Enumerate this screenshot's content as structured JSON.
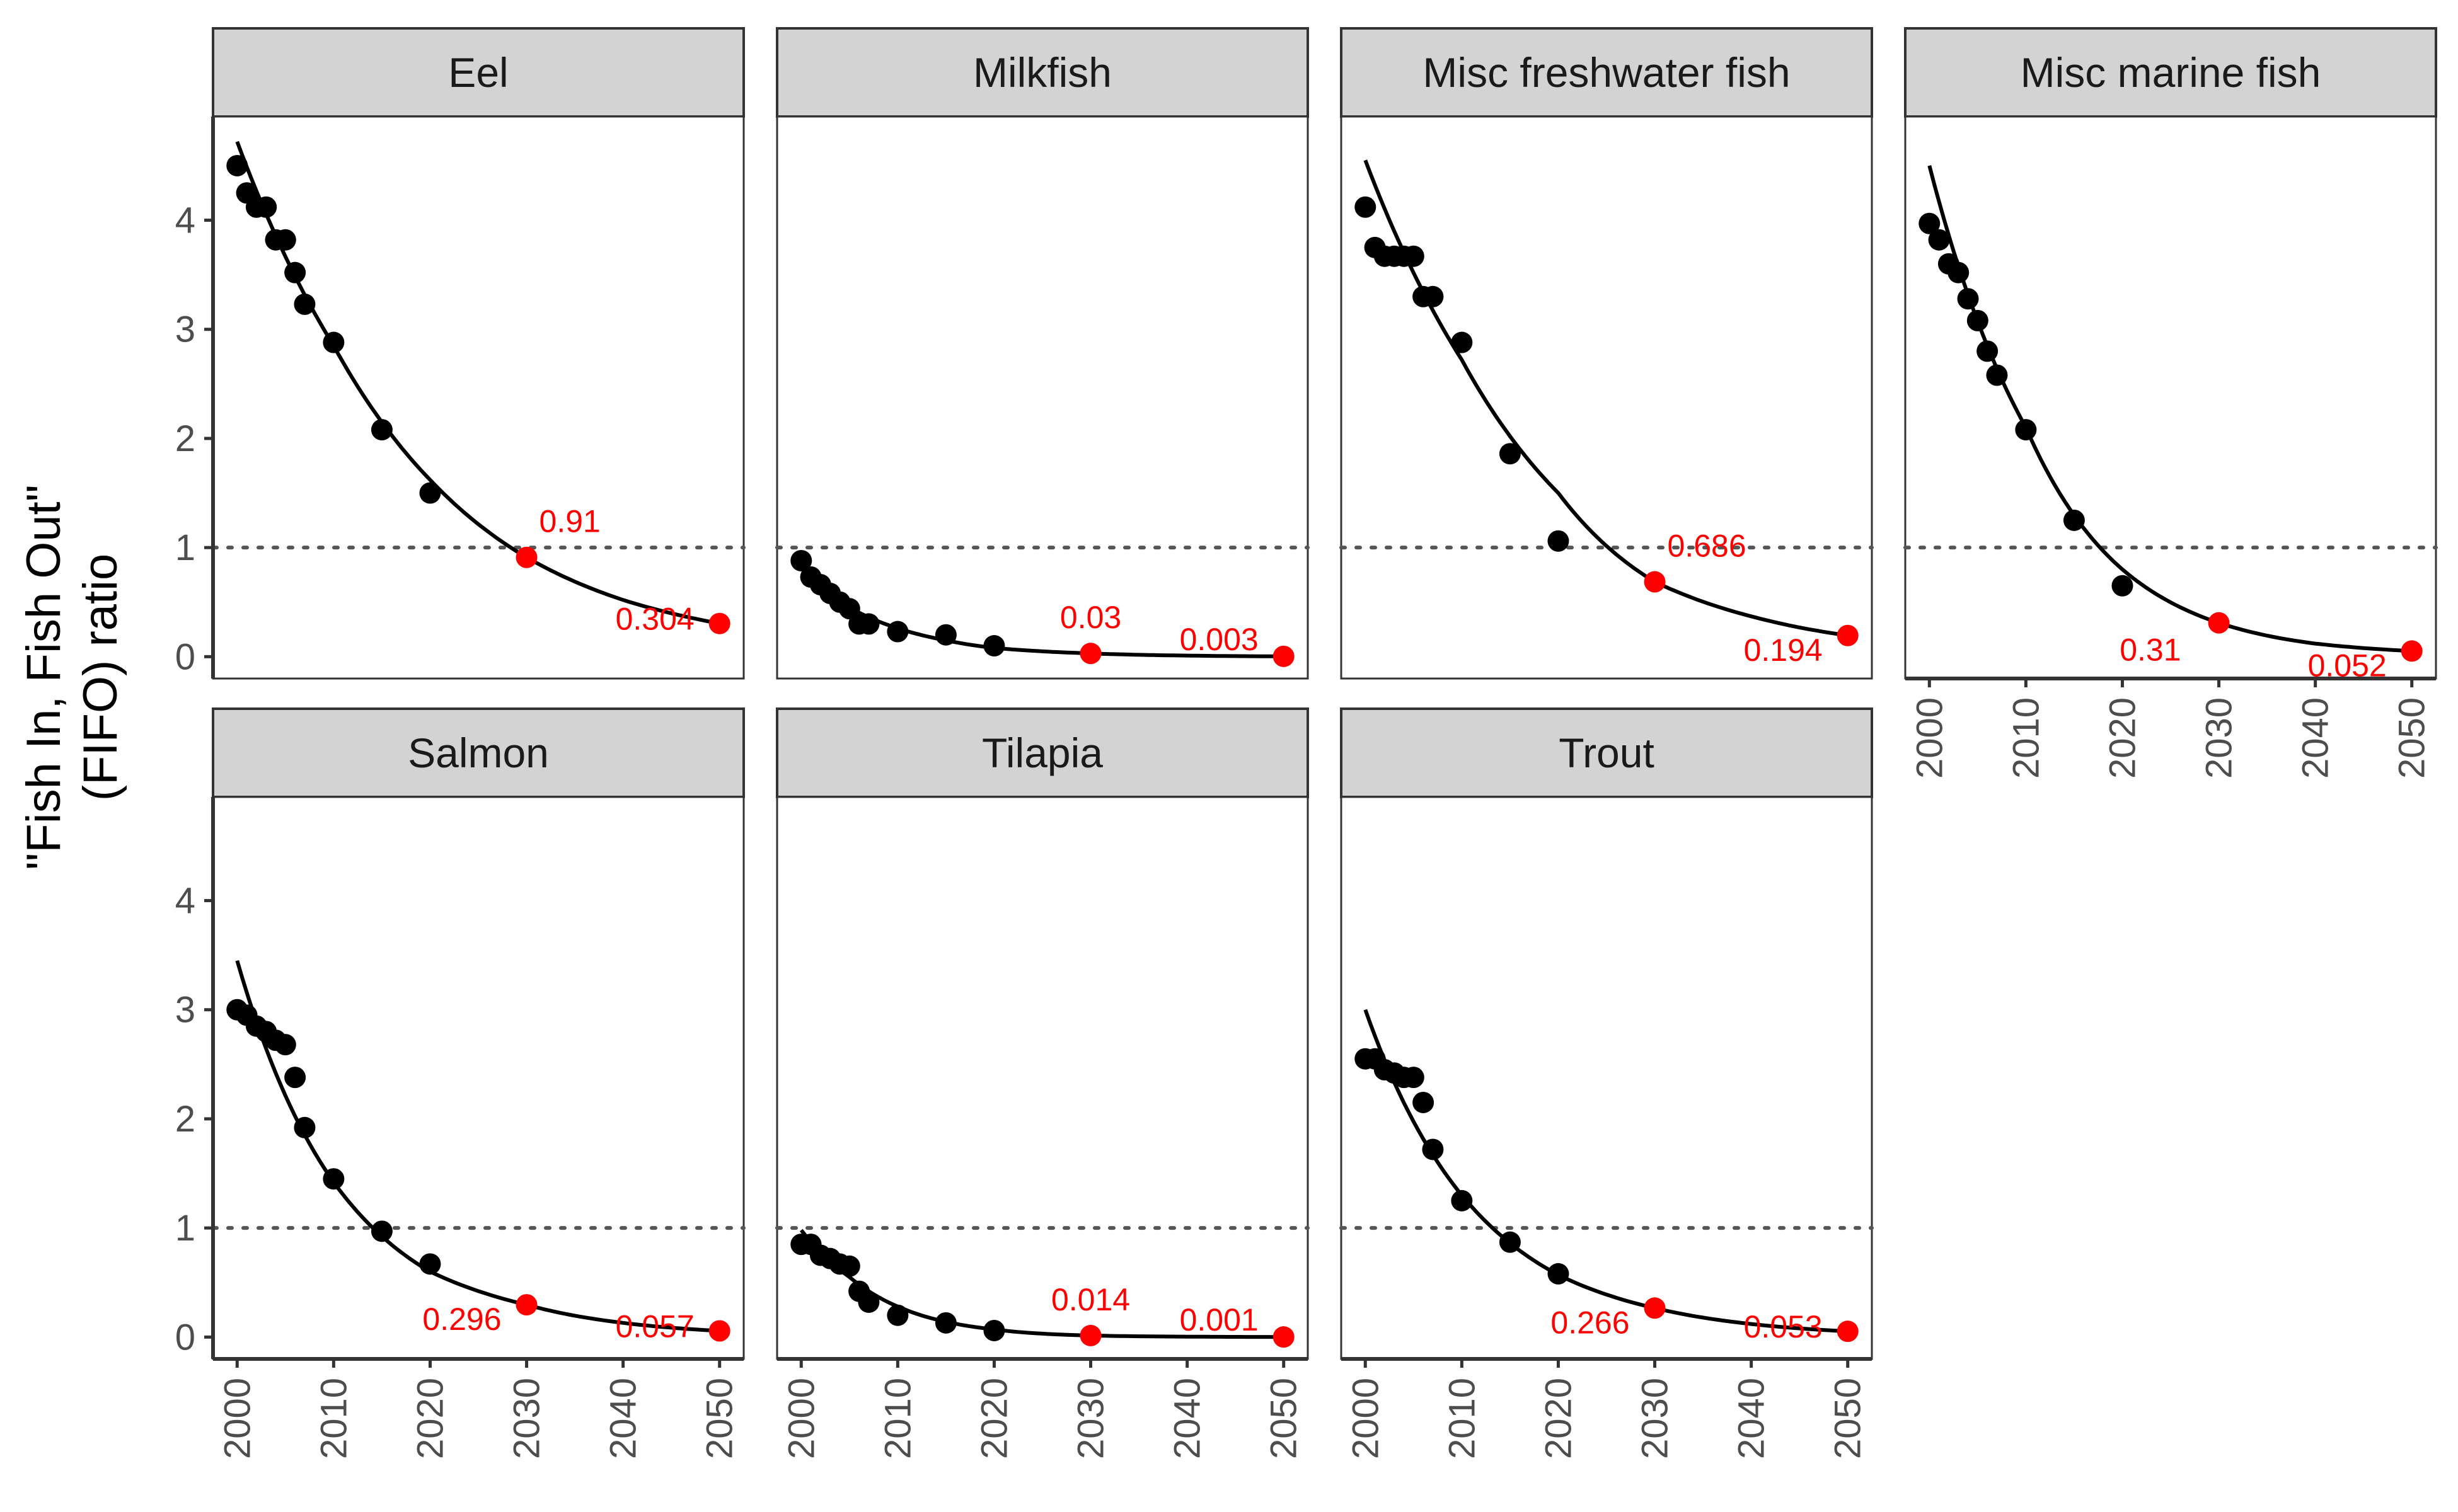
{
  "chart_data": {
    "type": "scatter",
    "ylabel": "\"Fish In, Fish Out\"",
    "ylabel_line2": "(FIFO) ratio",
    "xlabel": "",
    "x_ticks": [
      2000,
      2010,
      2020,
      2030,
      2040,
      2050
    ],
    "y_ticks": [
      0,
      1,
      2,
      3,
      4
    ],
    "xlim": [
      1997.5,
      2052.5
    ],
    "ylim": [
      -0.2,
      4.95
    ],
    "reference_line_y": 1,
    "colors": {
      "observed": "#000000",
      "projected": "#ff0000",
      "reference": "#555555",
      "strip": "#d3d3d3"
    },
    "panels": [
      {
        "name": "Eel",
        "observed": [
          [
            2000,
            4.5
          ],
          [
            2001,
            4.25
          ],
          [
            2002,
            4.12
          ],
          [
            2003,
            4.12
          ],
          [
            2004,
            3.82
          ],
          [
            2005,
            3.82
          ],
          [
            2006,
            3.52
          ],
          [
            2007,
            3.23
          ],
          [
            2010,
            2.88
          ],
          [
            2015,
            2.08
          ],
          [
            2020,
            1.5
          ]
        ],
        "curve": [
          [
            2000,
            4.72
          ],
          [
            2010,
            2.85
          ],
          [
            2020,
            1.62
          ],
          [
            2030,
            0.91
          ],
          [
            2040,
            0.52
          ],
          [
            2050,
            0.304
          ]
        ],
        "projected": [
          {
            "x": 2030,
            "y": 0.91,
            "label": "0.91"
          },
          {
            "x": 2050,
            "y": 0.304,
            "label": "0.304"
          }
        ]
      },
      {
        "name": "Milkfish",
        "observed": [
          [
            2000,
            0.88
          ],
          [
            2001,
            0.73
          ],
          [
            2002,
            0.66
          ],
          [
            2003,
            0.58
          ],
          [
            2004,
            0.5
          ],
          [
            2005,
            0.44
          ],
          [
            2006,
            0.3
          ],
          [
            2007,
            0.3
          ],
          [
            2010,
            0.23
          ],
          [
            2015,
            0.2
          ],
          [
            2020,
            0.1
          ]
        ],
        "curve": [
          [
            2000,
            0.82
          ],
          [
            2005,
            0.45
          ],
          [
            2010,
            0.26
          ],
          [
            2015,
            0.15
          ],
          [
            2020,
            0.08
          ],
          [
            2030,
            0.03
          ],
          [
            2040,
            0.01
          ],
          [
            2050,
            0.003
          ]
        ],
        "projected": [
          {
            "x": 2030,
            "y": 0.03,
            "label": "0.03"
          },
          {
            "x": 2050,
            "y": 0.003,
            "label": "0.003"
          }
        ]
      },
      {
        "name": "Misc freshwater fish",
        "observed": [
          [
            2000,
            4.12
          ],
          [
            2001,
            3.75
          ],
          [
            2002,
            3.67
          ],
          [
            2003,
            3.67
          ],
          [
            2004,
            3.67
          ],
          [
            2005,
            3.67
          ],
          [
            2006,
            3.3
          ],
          [
            2007,
            3.3
          ],
          [
            2010,
            2.88
          ],
          [
            2015,
            1.86
          ],
          [
            2020,
            1.06
          ]
        ],
        "curve": [
          [
            2000,
            4.55
          ],
          [
            2010,
            2.72
          ],
          [
            2020,
            1.5
          ],
          [
            2030,
            0.686
          ],
          [
            2040,
            0.37
          ],
          [
            2050,
            0.194
          ]
        ],
        "projected": [
          {
            "x": 2030,
            "y": 0.686,
            "label": "0.686"
          },
          {
            "x": 2050,
            "y": 0.194,
            "label": "0.194"
          }
        ]
      },
      {
        "name": "Misc marine fish",
        "observed": [
          [
            2000,
            3.97
          ],
          [
            2001,
            3.82
          ],
          [
            2002,
            3.6
          ],
          [
            2003,
            3.52
          ],
          [
            2004,
            3.28
          ],
          [
            2005,
            3.08
          ],
          [
            2006,
            2.8
          ],
          [
            2007,
            2.58
          ],
          [
            2010,
            2.08
          ],
          [
            2015,
            1.25
          ],
          [
            2020,
            0.65
          ]
        ],
        "curve": [
          [
            2000,
            4.5
          ],
          [
            2010,
            2.1
          ],
          [
            2020,
            0.8
          ],
          [
            2030,
            0.31
          ],
          [
            2040,
            0.12
          ],
          [
            2050,
            0.052
          ]
        ],
        "projected": [
          {
            "x": 2030,
            "y": 0.31,
            "label": "0.31"
          },
          {
            "x": 2050,
            "y": 0.052,
            "label": "0.052"
          }
        ]
      },
      {
        "name": "Salmon",
        "observed": [
          [
            2000,
            3.0
          ],
          [
            2001,
            2.95
          ],
          [
            2002,
            2.85
          ],
          [
            2003,
            2.8
          ],
          [
            2004,
            2.72
          ],
          [
            2005,
            2.68
          ],
          [
            2006,
            2.38
          ],
          [
            2007,
            1.92
          ],
          [
            2010,
            1.45
          ],
          [
            2015,
            0.97
          ],
          [
            2020,
            0.67
          ]
        ],
        "curve": [
          [
            2000,
            3.45
          ],
          [
            2010,
            1.42
          ],
          [
            2020,
            0.6
          ],
          [
            2030,
            0.296
          ],
          [
            2040,
            0.13
          ],
          [
            2050,
            0.057
          ]
        ],
        "projected": [
          {
            "x": 2030,
            "y": 0.296,
            "label": "0.296"
          },
          {
            "x": 2050,
            "y": 0.057,
            "label": "0.057"
          }
        ]
      },
      {
        "name": "Tilapia",
        "observed": [
          [
            2000,
            0.85
          ],
          [
            2001,
            0.85
          ],
          [
            2002,
            0.75
          ],
          [
            2003,
            0.72
          ],
          [
            2004,
            0.67
          ],
          [
            2005,
            0.65
          ],
          [
            2006,
            0.42
          ],
          [
            2007,
            0.32
          ],
          [
            2010,
            0.2
          ],
          [
            2015,
            0.13
          ],
          [
            2020,
            0.06
          ]
        ],
        "curve": [
          [
            2000,
            0.98
          ],
          [
            2005,
            0.55
          ],
          [
            2010,
            0.28
          ],
          [
            2015,
            0.14
          ],
          [
            2020,
            0.07
          ],
          [
            2030,
            0.014
          ],
          [
            2040,
            0.004
          ],
          [
            2050,
            0.001
          ]
        ],
        "projected": [
          {
            "x": 2030,
            "y": 0.014,
            "label": "0.014"
          },
          {
            "x": 2050,
            "y": 0.001,
            "label": "0.001"
          }
        ]
      },
      {
        "name": "Trout",
        "observed": [
          [
            2000,
            2.55
          ],
          [
            2001,
            2.55
          ],
          [
            2002,
            2.45
          ],
          [
            2003,
            2.42
          ],
          [
            2004,
            2.38
          ],
          [
            2005,
            2.38
          ],
          [
            2006,
            2.15
          ],
          [
            2007,
            1.72
          ],
          [
            2010,
            1.25
          ],
          [
            2015,
            0.87
          ],
          [
            2020,
            0.58
          ]
        ],
        "curve": [
          [
            2000,
            3.0
          ],
          [
            2010,
            1.3
          ],
          [
            2020,
            0.57
          ],
          [
            2030,
            0.266
          ],
          [
            2040,
            0.12
          ],
          [
            2050,
            0.053
          ]
        ],
        "projected": [
          {
            "x": 2030,
            "y": 0.266,
            "label": "0.266"
          },
          {
            "x": 2050,
            "y": 0.053,
            "label": "0.053"
          }
        ]
      }
    ]
  }
}
